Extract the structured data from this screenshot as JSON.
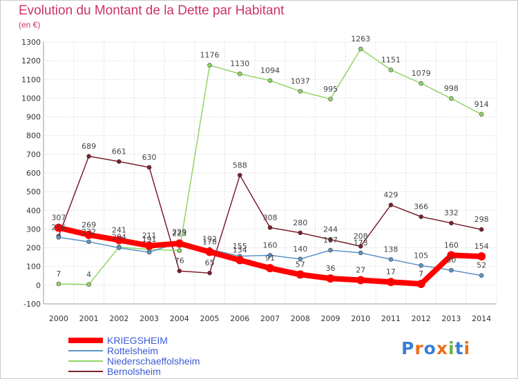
{
  "header": {
    "title": "Evolution du Montant de la Dette par Habitant",
    "subtitle": "(en €)"
  },
  "logo": {
    "text": "Proxiti",
    "colors": [
      "#3a7fd5",
      "#e8701a",
      "#3a7fd5",
      "#e8701a",
      "#6db33f",
      "#3a7fd5",
      "#e8701a"
    ]
  },
  "chart_data": {
    "type": "line",
    "title": "Evolution du Montant de la Dette par Habitant",
    "subtitle": "(en €)",
    "x": [
      "2000",
      "2001",
      "2002",
      "2003",
      "2004",
      "2005",
      "2006",
      "2007",
      "2008",
      "2009",
      "2010",
      "2011",
      "2012",
      "2013",
      "2014"
    ],
    "y_ticks": [
      "-100",
      "0",
      "100",
      "200",
      "300",
      "400",
      "500",
      "600",
      "700",
      "800",
      "900",
      "1000",
      "1100",
      "1200",
      "1300"
    ],
    "ylim": [
      -100,
      1300
    ],
    "grid": true,
    "legend_position": "bottom-left",
    "series": [
      {
        "name": "Bernolsheim",
        "color": "#7a1f2b",
        "values": [
          262,
          689,
          661,
          630,
          76,
          65,
          588,
          308,
          280,
          244,
          208,
          429,
          366,
          332,
          298
        ],
        "labels": [
          "",
          "689",
          "661",
          "630",
          "76",
          "65",
          "588",
          "308",
          "280",
          "244",
          "208",
          "429",
          "366",
          "332",
          "298"
        ]
      },
      {
        "name": "Niederschaeffolsheim",
        "color": "#8fd466",
        "values": [
          7,
          4,
          204,
          191,
          185,
          1176,
          1130,
          1094,
          1037,
          995,
          1263,
          1151,
          1079,
          998,
          914
        ],
        "labels": [
          "7",
          "4",
          "204",
          "191",
          "",
          "1176",
          "1130",
          "1094",
          "1037",
          "995",
          "1263",
          "1151",
          "1079",
          "998",
          "914"
        ]
      },
      {
        "name": "Rottelsheim",
        "color": "#5b93c9",
        "values": [
          256,
          232,
          200,
          176,
          229,
          192,
          155,
          160,
          140,
          187,
          173,
          138,
          105,
          80,
          52
        ],
        "labels": [
          "256",
          "232",
          "",
          "",
          "229",
          "192",
          "155",
          "160",
          "140",
          "187",
          "173",
          "138",
          "105",
          "80",
          "52"
        ]
      },
      {
        "name": "KRIEGSHEIM",
        "color": "#ff0000",
        "values": [
          307,
          269,
          241,
          211,
          223,
          178,
          134,
          91,
          57,
          36,
          27,
          17,
          7,
          160,
          154
        ],
        "labels": [
          "307",
          "269",
          "241",
          "211",
          "223",
          "178",
          "134",
          "91",
          "57",
          "36",
          "27",
          "17",
          "7",
          "160",
          "154"
        ]
      }
    ]
  }
}
